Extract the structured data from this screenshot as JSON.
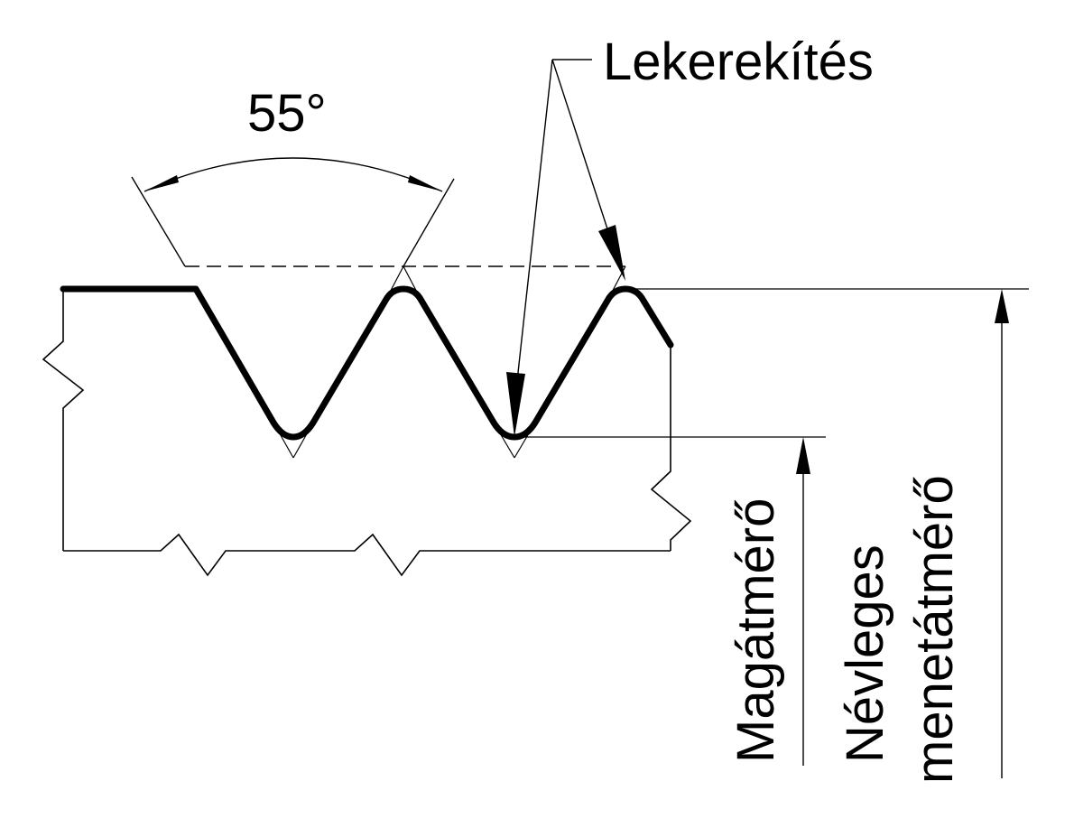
{
  "diagram": {
    "angle_label": "55°",
    "rounding_label": "Lekerekítés",
    "minor_diameter_label": "Magátmérő",
    "nominal_diameter_line1": "Névleges",
    "nominal_diameter_line2": "menetátmérő"
  },
  "colors": {
    "ink": "#000000",
    "background": "#ffffff"
  }
}
